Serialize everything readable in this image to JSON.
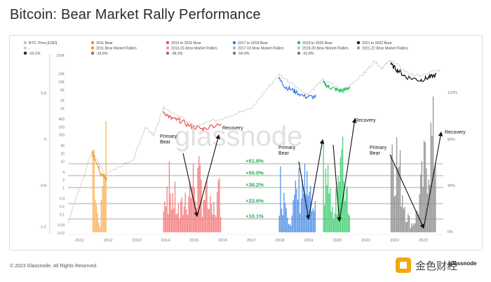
{
  "title": "Bitcoin: Bear Market Rally Performance",
  "footer": "© 2023 Glassnode. All Rights Reserved.",
  "watermark": "glassnode",
  "brand_text": "金色财经",
  "brand_logo_text": "glassnode",
  "chart_data": {
    "type": "line",
    "x_ticks": [
      "2011",
      "2012",
      "2013",
      "2014",
      "2015",
      "2016",
      "2017",
      "2018",
      "2019",
      "2020",
      "2021",
      "2022",
      "2023"
    ],
    "y_left_ticks": [
      "-1.2",
      "-0.8",
      "0",
      "0.8"
    ],
    "y_price_ticks": [
      "100K",
      "20K",
      "10K",
      "5K",
      "2K",
      "1K",
      "400",
      "200",
      "100",
      "40",
      "20",
      "10",
      "4",
      "2",
      "1",
      "0.4",
      "0.2",
      "0.1",
      "0.04",
      "0.02"
    ],
    "y_right_ticks": [
      "120%",
      "80%",
      "40%",
      "0%"
    ],
    "legend": [
      {
        "label": "BTC: Price [USD]",
        "color": "#bdbdbd"
      },
      {
        "label": "-",
        "color": "#cfcfcf"
      },
      {
        "label": "-10.1%",
        "color": "#222222"
      },
      {
        "label": "2011 Bear",
        "color": "#f7931a"
      },
      {
        "label": "2011 Bear Market Rallies",
        "color": "#f7931a"
      },
      {
        "label": "-23.6%",
        "color": "#7a7a7a"
      },
      {
        "label": "2013 to 2015 Bear",
        "color": "#f44c4c"
      },
      {
        "label": "2013-15 Bear Market Rallies",
        "color": "#f79a9a"
      },
      {
        "label": "-38.2%",
        "color": "#7a7a7a"
      },
      {
        "label": "2017 to 2018 Bear",
        "color": "#2f7ae5"
      },
      {
        "label": "2017-18 Bear Market Rallies",
        "color": "#8fb8f0"
      },
      {
        "label": "-50.0%",
        "color": "#7a7a7a"
      },
      {
        "label": "2019 to 2020 Bear",
        "color": "#21c25e"
      },
      {
        "label": "2019-20 Bear Market Rallies",
        "color": "#8be0a8"
      },
      {
        "label": "-61.8%",
        "color": "#7a7a7a"
      },
      {
        "label": "2021 to 2022 Bear",
        "color": "#111111"
      },
      {
        "label": "2021-22 Bear Market Rallies",
        "color": "#9a9a9a"
      }
    ],
    "fib_levels": [
      {
        "label": "+61.8%",
        "value": 61.8
      },
      {
        "label": "+50.0%",
        "value": 50.0
      },
      {
        "label": "+38.2%",
        "value": 38.2
      },
      {
        "label": "+23.6%",
        "value": 23.6
      },
      {
        "label": "+10.1%",
        "value": 10.1
      }
    ],
    "annotations": [
      {
        "label": "Primary Bear"
      },
      {
        "label": "Recovery"
      },
      {
        "label": "Primary Bear"
      },
      {
        "label": "Recovery"
      },
      {
        "label": "Primary Bear"
      },
      {
        "label": "Recovery"
      }
    ],
    "bear_periods": [
      {
        "name": "2011 Bear",
        "start": 2011.45,
        "end": 2011.95,
        "color": "#f7931a",
        "rally_color": "#f9b45a"
      },
      {
        "name": "2013 to 2015 Bear",
        "start": 2013.92,
        "end": 2015.95,
        "color": "#f44c4c",
        "rally_color": "#f47878"
      },
      {
        "name": "2017 to 2018 Bear",
        "start": 2017.96,
        "end": 2019.25,
        "color": "#2f7ae5",
        "rally_color": "#4e8fe8"
      },
      {
        "name": "2019 to 2020 Bear",
        "start": 2019.5,
        "end": 2020.45,
        "color": "#21c25e",
        "rally_color": "#3fce72"
      },
      {
        "name": "2021 to 2022 Bear",
        "start": 2021.86,
        "end": 2023.45,
        "color": "#111111",
        "rally_color": "#8c8c8c"
      }
    ],
    "xlim": [
      2010.6,
      2023.7
    ]
  }
}
